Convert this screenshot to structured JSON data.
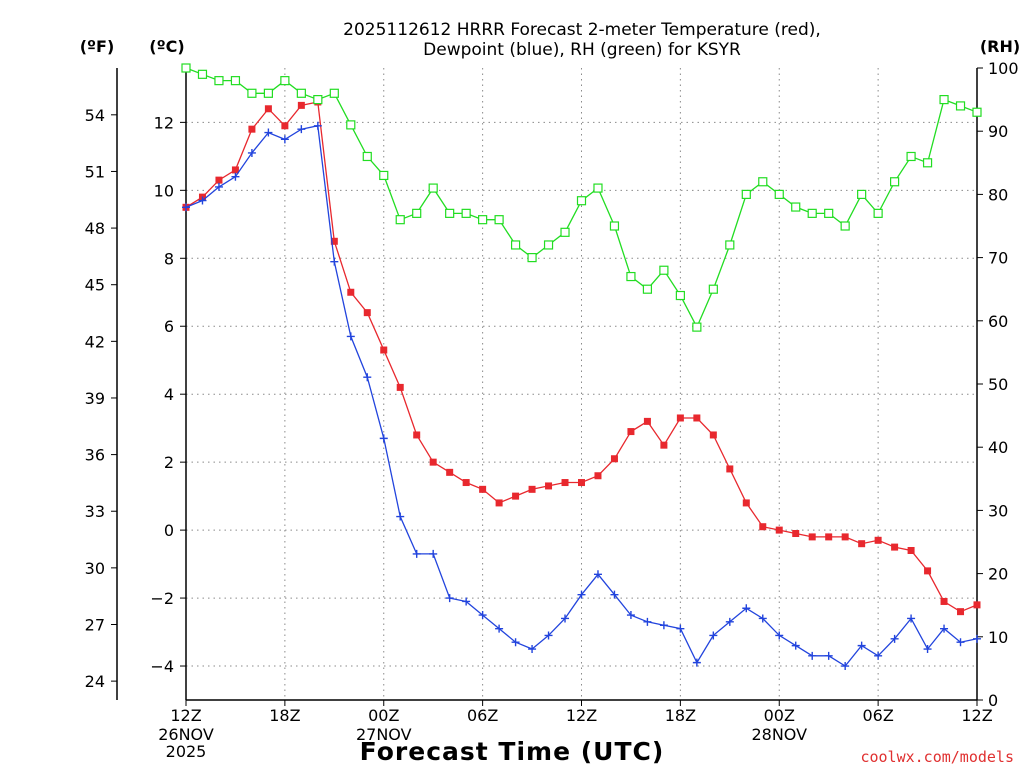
{
  "chart_data": {
    "type": "line",
    "title_line1": "2025112612 HRRR Forecast 2-meter Temperature (red),",
    "title_line2": "Dewpoint (blue), RH (green) for KSYR",
    "units": {
      "left_f": "(ºF)",
      "left_c": "(ºC)",
      "right_rh": "(RH)"
    },
    "xlabel": "Forecast Time (UTC)",
    "watermark": "coolwx.com/models",
    "x_range_hours": [
      0,
      48
    ],
    "celsius_range": [
      -5,
      13.6
    ],
    "rh_range": [
      0,
      100
    ],
    "x_ticks": [
      {
        "hour": 0,
        "label": "12Z",
        "date": "26NOV",
        "year": "2025"
      },
      {
        "hour": 6,
        "label": "18Z",
        "date": "",
        "year": ""
      },
      {
        "hour": 12,
        "label": "00Z",
        "date": "27NOV",
        "year": ""
      },
      {
        "hour": 18,
        "label": "06Z",
        "date": "",
        "year": ""
      },
      {
        "hour": 24,
        "label": "12Z",
        "date": "",
        "year": ""
      },
      {
        "hour": 30,
        "label": "18Z",
        "date": "",
        "year": ""
      },
      {
        "hour": 36,
        "label": "00Z",
        "date": "28NOV",
        "year": ""
      },
      {
        "hour": 42,
        "label": "06Z",
        "date": "",
        "year": ""
      },
      {
        "hour": 48,
        "label": "12Z",
        "date": "",
        "year": ""
      }
    ],
    "celsius_ticks": [
      {
        "value": -4,
        "label": "−4"
      },
      {
        "value": -2,
        "label": "−2"
      },
      {
        "value": 0,
        "label": "0"
      },
      {
        "value": 2,
        "label": "2"
      },
      {
        "value": 4,
        "label": "4"
      },
      {
        "value": 6,
        "label": "6"
      },
      {
        "value": 8,
        "label": "8"
      },
      {
        "value": 10,
        "label": "10"
      },
      {
        "value": 12,
        "label": "12"
      }
    ],
    "fahrenheit_ticks": [
      {
        "value": 24,
        "label": "24"
      },
      {
        "value": 27,
        "label": "27"
      },
      {
        "value": 30,
        "label": "30"
      },
      {
        "value": 33,
        "label": "33"
      },
      {
        "value": 36,
        "label": "36"
      },
      {
        "value": 39,
        "label": "39"
      },
      {
        "value": 42,
        "label": "42"
      },
      {
        "value": 45,
        "label": "45"
      },
      {
        "value": 48,
        "label": "48"
      },
      {
        "value": 51,
        "label": "51"
      },
      {
        "value": 54,
        "label": "54"
      }
    ],
    "rh_ticks": [
      {
        "value": 0,
        "label": "0"
      },
      {
        "value": 10,
        "label": "10"
      },
      {
        "value": 20,
        "label": "20"
      },
      {
        "value": 30,
        "label": "30"
      },
      {
        "value": 40,
        "label": "40"
      },
      {
        "value": 50,
        "label": "50"
      },
      {
        "value": 60,
        "label": "60"
      },
      {
        "value": 70,
        "label": "70"
      },
      {
        "value": 80,
        "label": "80"
      },
      {
        "value": 90,
        "label": "90"
      },
      {
        "value": 100,
        "label": "100"
      }
    ],
    "series": [
      {
        "name": "Temperature",
        "axis": "celsius",
        "color": "#e8282e",
        "marker": "filled-square",
        "values": [
          9.5,
          9.8,
          10.3,
          10.6,
          11.8,
          12.4,
          11.9,
          12.5,
          12.6,
          8.5,
          7.0,
          6.4,
          5.3,
          4.2,
          2.8,
          2.0,
          1.7,
          1.4,
          1.2,
          0.8,
          1.0,
          1.2,
          1.3,
          1.4,
          1.4,
          1.6,
          2.1,
          2.9,
          3.2,
          2.5,
          3.3,
          3.3,
          2.8,
          1.8,
          0.8,
          0.1,
          0.0,
          -0.1,
          -0.2,
          -0.2,
          -0.2,
          -0.4,
          -0.3,
          -0.5,
          -0.6,
          -1.2,
          -2.1,
          -2.4,
          -2.2
        ]
      },
      {
        "name": "Dewpoint",
        "axis": "celsius",
        "color": "#2244dd",
        "marker": "plus",
        "values": [
          9.5,
          9.7,
          10.1,
          10.4,
          11.1,
          11.7,
          11.5,
          11.8,
          11.9,
          7.9,
          5.7,
          4.5,
          2.7,
          0.4,
          -0.7,
          -0.7,
          -2.0,
          -2.1,
          -2.5,
          -2.9,
          -3.3,
          -3.5,
          -3.1,
          -2.6,
          -1.9,
          -1.3,
          -1.9,
          -2.5,
          -2.7,
          -2.8,
          -2.9,
          -3.9,
          -3.1,
          -2.7,
          -2.3,
          -2.6,
          -3.1,
          -3.4,
          -3.7,
          -3.7,
          -4.0,
          -3.4,
          -3.7,
          -3.2,
          -2.6,
          -3.5,
          -2.9,
          -3.3,
          -3.2
        ]
      },
      {
        "name": "RH",
        "axis": "rh",
        "color": "#22dd22",
        "marker": "open-square",
        "values": [
          100,
          99,
          98,
          98,
          96,
          96,
          98,
          96,
          95,
          96,
          91,
          86,
          83,
          76,
          77,
          81,
          77,
          77,
          76,
          76,
          72,
          70,
          72,
          74,
          79,
          81,
          75,
          67,
          65,
          68,
          64,
          59,
          65,
          72,
          80,
          82,
          80,
          78,
          77,
          77,
          75,
          80,
          77,
          82,
          86,
          85,
          95,
          94,
          93
        ]
      }
    ]
  }
}
